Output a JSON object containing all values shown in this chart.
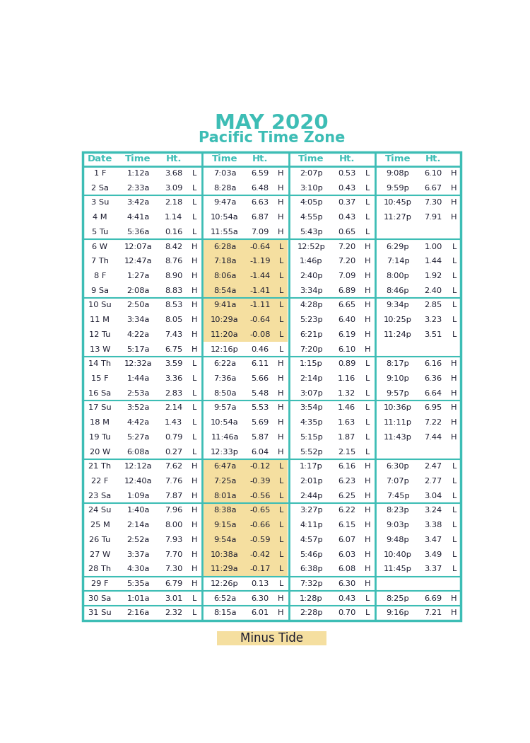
{
  "title": "MAY 2020",
  "subtitle": "Pacific Time Zone",
  "title_color": "#3DBDB5",
  "header_color": "#3DBDB5",
  "border_color": "#3DBDB5",
  "bg_color": "#FFFFFF",
  "highlight_color": "#F5DFA0",
  "legend_color": "#F5DFA0",
  "text_color": "#1A1A2E",
  "rows": [
    [
      "1 F",
      "1:12a",
      "3.68",
      "L",
      "7:03a",
      "6.59",
      "H",
      "2:07p",
      "0.53",
      "L",
      "9:08p",
      "6.10",
      "H"
    ],
    [
      "2 Sa",
      "2:33a",
      "3.09",
      "L",
      "8:28a",
      "6.48",
      "H",
      "3:10p",
      "0.43",
      "L",
      "9:59p",
      "6.67",
      "H"
    ],
    [
      "3 Su",
      "3:42a",
      "2.18",
      "L",
      "9:47a",
      "6.63",
      "H",
      "4:05p",
      "0.37",
      "L",
      "10:45p",
      "7.30",
      "H"
    ],
    [
      "4 M",
      "4:41a",
      "1.14",
      "L",
      "10:54a",
      "6.87",
      "H",
      "4:55p",
      "0.43",
      "L",
      "11:27p",
      "7.91",
      "H"
    ],
    [
      "5 Tu",
      "5:36a",
      "0.16",
      "L",
      "11:55a",
      "7.09",
      "H",
      "5:43p",
      "0.65",
      "L",
      "",
      "",
      ""
    ],
    [
      "6 W",
      "12:07a",
      "8.42",
      "H",
      "6:28a",
      "-0.64",
      "L",
      "12:52p",
      "7.20",
      "H",
      "6:29p",
      "1.00",
      "L"
    ],
    [
      "7 Th",
      "12:47a",
      "8.76",
      "H",
      "7:18a",
      "-1.19",
      "L",
      "1:46p",
      "7.20",
      "H",
      "7:14p",
      "1.44",
      "L"
    ],
    [
      "8 F",
      "1:27a",
      "8.90",
      "H",
      "8:06a",
      "-1.44",
      "L",
      "2:40p",
      "7.09",
      "H",
      "8:00p",
      "1.92",
      "L"
    ],
    [
      "9 Sa",
      "2:08a",
      "8.83",
      "H",
      "8:54a",
      "-1.41",
      "L",
      "3:34p",
      "6.89",
      "H",
      "8:46p",
      "2.40",
      "L"
    ],
    [
      "10 Su",
      "2:50a",
      "8.53",
      "H",
      "9:41a",
      "-1.11",
      "L",
      "4:28p",
      "6.65",
      "H",
      "9:34p",
      "2.85",
      "L"
    ],
    [
      "11 M",
      "3:34a",
      "8.05",
      "H",
      "10:29a",
      "-0.64",
      "L",
      "5:23p",
      "6.40",
      "H",
      "10:25p",
      "3.23",
      "L"
    ],
    [
      "12 Tu",
      "4:22a",
      "7.43",
      "H",
      "11:20a",
      "-0.08",
      "L",
      "6:21p",
      "6.19",
      "H",
      "11:24p",
      "3.51",
      "L"
    ],
    [
      "13 W",
      "5:17a",
      "6.75",
      "H",
      "12:16p",
      "0.46",
      "L",
      "7:20p",
      "6.10",
      "H",
      "",
      "",
      ""
    ],
    [
      "14 Th",
      "12:32a",
      "3.59",
      "L",
      "6:22a",
      "6.11",
      "H",
      "1:15p",
      "0.89",
      "L",
      "8:17p",
      "6.16",
      "H"
    ],
    [
      "15 F",
      "1:44a",
      "3.36",
      "L",
      "7:36a",
      "5.66",
      "H",
      "2:14p",
      "1.16",
      "L",
      "9:10p",
      "6.36",
      "H"
    ],
    [
      "16 Sa",
      "2:53a",
      "2.83",
      "L",
      "8:50a",
      "5.48",
      "H",
      "3:07p",
      "1.32",
      "L",
      "9:57p",
      "6.64",
      "H"
    ],
    [
      "17 Su",
      "3:52a",
      "2.14",
      "L",
      "9:57a",
      "5.53",
      "H",
      "3:54p",
      "1.46",
      "L",
      "10:36p",
      "6.95",
      "H"
    ],
    [
      "18 M",
      "4:42a",
      "1.43",
      "L",
      "10:54a",
      "5.69",
      "H",
      "4:35p",
      "1.63",
      "L",
      "11:11p",
      "7.22",
      "H"
    ],
    [
      "19 Tu",
      "5:27a",
      "0.79",
      "L",
      "11:46a",
      "5.87",
      "H",
      "5:15p",
      "1.87",
      "L",
      "11:43p",
      "7.44",
      "H"
    ],
    [
      "20 W",
      "6:08a",
      "0.27",
      "L",
      "12:33p",
      "6.04",
      "H",
      "5:52p",
      "2.15",
      "L",
      "",
      "",
      ""
    ],
    [
      "21 Th",
      "12:12a",
      "7.62",
      "H",
      "6:47a",
      "-0.12",
      "L",
      "1:17p",
      "6.16",
      "H",
      "6:30p",
      "2.47",
      "L"
    ],
    [
      "22 F",
      "12:40a",
      "7.76",
      "H",
      "7:25a",
      "-0.39",
      "L",
      "2:01p",
      "6.23",
      "H",
      "7:07p",
      "2.77",
      "L"
    ],
    [
      "23 Sa",
      "1:09a",
      "7.87",
      "H",
      "8:01a",
      "-0.56",
      "L",
      "2:44p",
      "6.25",
      "H",
      "7:45p",
      "3.04",
      "L"
    ],
    [
      "24 Su",
      "1:40a",
      "7.96",
      "H",
      "8:38a",
      "-0.65",
      "L",
      "3:27p",
      "6.22",
      "H",
      "8:23p",
      "3.24",
      "L"
    ],
    [
      "25 M",
      "2:14a",
      "8.00",
      "H",
      "9:15a",
      "-0.66",
      "L",
      "4:11p",
      "6.15",
      "H",
      "9:03p",
      "3.38",
      "L"
    ],
    [
      "26 Tu",
      "2:52a",
      "7.93",
      "H",
      "9:54a",
      "-0.59",
      "L",
      "4:57p",
      "6.07",
      "H",
      "9:48p",
      "3.47",
      "L"
    ],
    [
      "27 W",
      "3:37a",
      "7.70",
      "H",
      "10:38a",
      "-0.42",
      "L",
      "5:46p",
      "6.03",
      "H",
      "10:40p",
      "3.49",
      "L"
    ],
    [
      "28 Th",
      "4:30a",
      "7.30",
      "H",
      "11:29a",
      "-0.17",
      "L",
      "6:38p",
      "6.08",
      "H",
      "11:45p",
      "3.37",
      "L"
    ],
    [
      "29 F",
      "5:35a",
      "6.79",
      "H",
      "12:26p",
      "0.13",
      "L",
      "7:32p",
      "6.30",
      "H",
      "",
      "",
      ""
    ],
    [
      "30 Sa",
      "1:01a",
      "3.01",
      "L",
      "6:52a",
      "6.30",
      "H",
      "1:28p",
      "0.43",
      "L",
      "8:25p",
      "6.69",
      "H"
    ],
    [
      "31 Su",
      "2:16a",
      "2.32",
      "L",
      "8:15a",
      "6.01",
      "H",
      "2:28p",
      "0.70",
      "L",
      "9:16p",
      "7.21",
      "H"
    ]
  ],
  "highlighted_rows": [
    5,
    6,
    7,
    8,
    9,
    10,
    11,
    20,
    21,
    22,
    23,
    24,
    25,
    26,
    27
  ],
  "group_boundaries": [
    2,
    5,
    9,
    13,
    16,
    20,
    23,
    28,
    29,
    30
  ]
}
